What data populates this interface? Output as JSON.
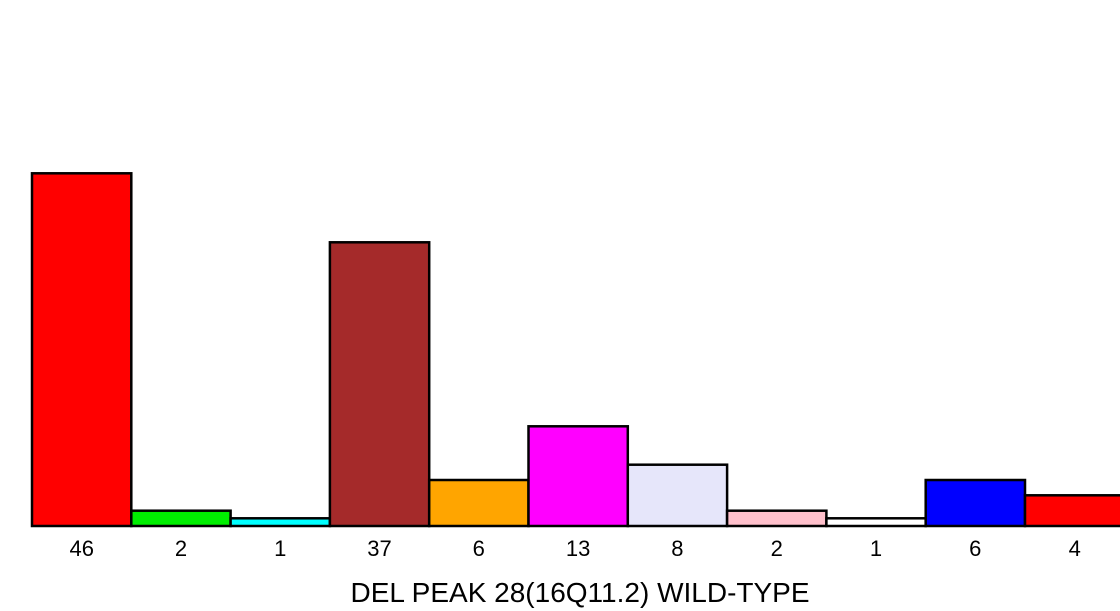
{
  "chart_data": {
    "type": "bar",
    "xlabel": "DEL PEAK 28(16Q11.2) WILD-TYPE",
    "ylabel": "",
    "categories": [
      "46",
      "2",
      "1",
      "37",
      "6",
      "13",
      "8",
      "2",
      "1",
      "6",
      "4"
    ],
    "values": [
      46,
      2,
      1,
      37,
      6,
      13,
      8,
      2,
      1,
      6,
      4
    ],
    "colors": [
      "#ff0000",
      "#00ee00",
      "#00ffff",
      "#a52a2a",
      "#ffa500",
      "#ff00ff",
      "#e6e6fa",
      "#ffc0cb",
      "#ffffff",
      "#0000ff",
      "#ff0000"
    ],
    "ylim": [
      0,
      60
    ],
    "grid": false,
    "legend": "none"
  }
}
